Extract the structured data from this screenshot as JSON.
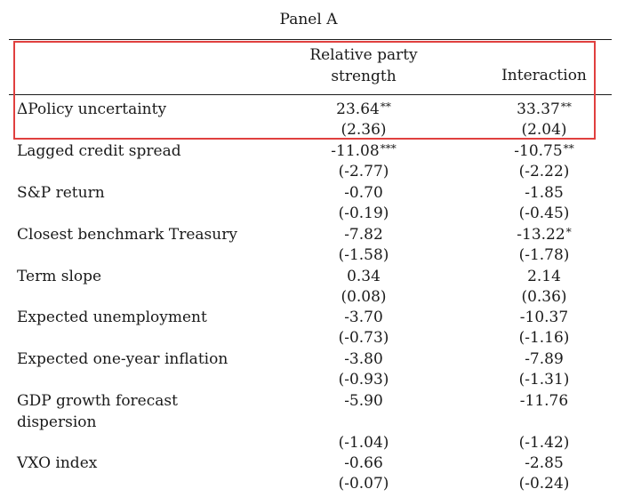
{
  "panel_title": "Panel A",
  "columns": {
    "col1_line1": "Relative party",
    "col1_line2": "strength",
    "col2": "Interaction"
  },
  "rows": [
    {
      "label": "ΔPolicy uncertainty",
      "c1": "23.64",
      "c1_stars": "**",
      "c1_t": "(2.36)",
      "c2": "33.37",
      "c2_stars": "**",
      "c2_t": "(2.04)"
    },
    {
      "label": "Lagged credit spread",
      "c1": "-11.08",
      "c1_stars": "***",
      "c1_t": "(-2.77)",
      "c2": "-10.75",
      "c2_stars": "**",
      "c2_t": "(-2.22)"
    },
    {
      "label": "S&P return",
      "c1": "-0.70",
      "c1_stars": "",
      "c1_t": "(-0.19)",
      "c2": "-1.85",
      "c2_stars": "",
      "c2_t": "(-0.45)"
    },
    {
      "label": "Closest benchmark Treasury",
      "c1": "-7.82",
      "c1_stars": "",
      "c1_t": "(-1.58)",
      "c2": "-13.22",
      "c2_stars": "*",
      "c2_t": "(-1.78)"
    },
    {
      "label": "Term slope",
      "c1": "0.34",
      "c1_stars": "",
      "c1_t": "(0.08)",
      "c2": "2.14",
      "c2_stars": "",
      "c2_t": "(0.36)"
    },
    {
      "label": "Expected unemployment",
      "c1": "-3.70",
      "c1_stars": "",
      "c1_t": "(-0.73)",
      "c2": "-10.37",
      "c2_stars": "",
      "c2_t": "(-1.16)"
    },
    {
      "label": "Expected one-year inflation",
      "c1": "-3.80",
      "c1_stars": "",
      "c1_t": "(-0.93)",
      "c2": "-7.89",
      "c2_stars": "",
      "c2_t": "(-1.31)"
    },
    {
      "label_line1": "GDP growth forecast",
      "label_line2": "dispersion",
      "c1": "-5.90",
      "c1_stars": "",
      "c1_t": "(-1.04)",
      "c2": "-11.76",
      "c2_stars": "",
      "c2_t": "(-1.42)"
    },
    {
      "label": "VXO index",
      "c1": "-0.66",
      "c1_stars": "",
      "c1_t": "(-0.07)",
      "c2": "-2.85",
      "c2_stars": "",
      "c2_t": "(-0.24)"
    }
  ],
  "highlight_color": "#e0403f"
}
